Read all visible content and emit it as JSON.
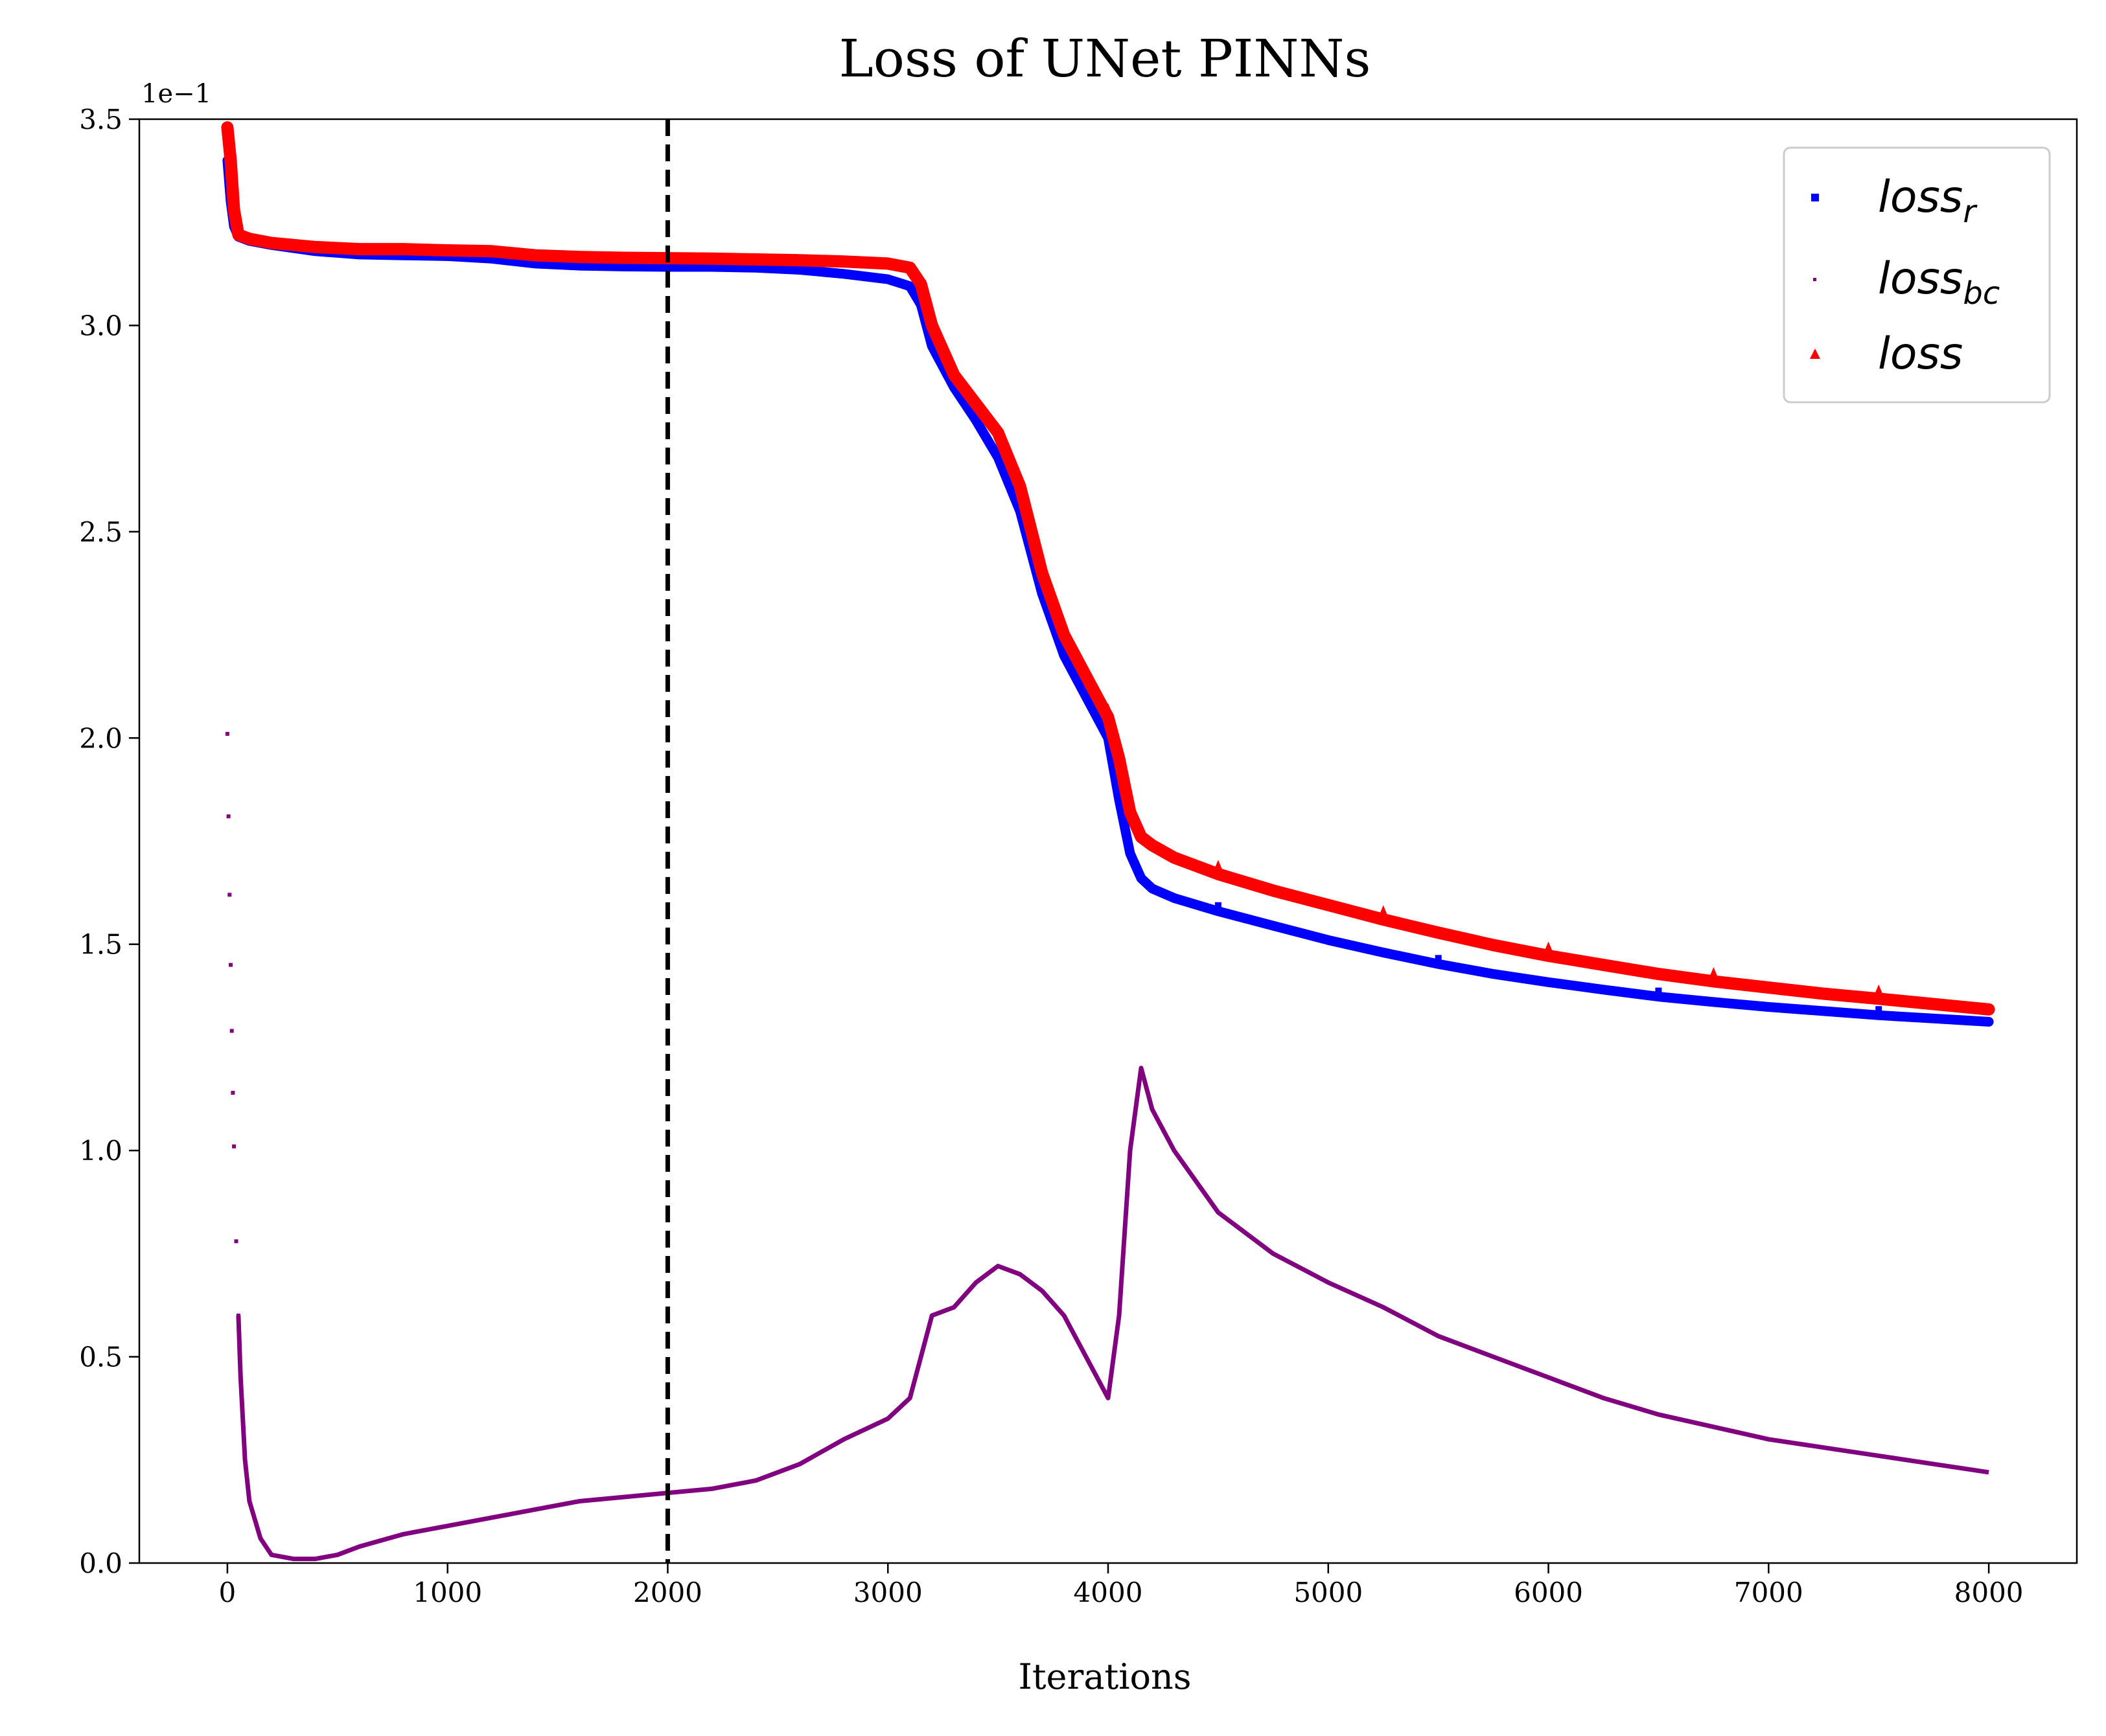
{
  "chart_data": {
    "type": "line",
    "title": "Loss of UNet PINNs",
    "xlabel": "Iterations",
    "ylabel": "",
    "y_offset_label": "1e−1",
    "xlim": [
      -400,
      8400
    ],
    "ylim": [
      0,
      3.5
    ],
    "x_ticks": [
      0,
      1000,
      2000,
      3000,
      4000,
      5000,
      6000,
      7000,
      8000
    ],
    "x_tick_labels": [
      "0",
      "1000",
      "2000",
      "3000",
      "4000",
      "5000",
      "6000",
      "7000",
      "8000"
    ],
    "y_ticks": [
      0,
      0.5,
      1.0,
      1.5,
      2.0,
      2.5,
      3.0,
      3.5
    ],
    "y_tick_labels": [
      "0.0",
      "0.5",
      "1.0",
      "1.5",
      "2.0",
      "2.5",
      "3.0",
      "3.5"
    ],
    "grid": false,
    "legend_position": "top-right",
    "vertical_line": {
      "x": 2000,
      "style": "dashed",
      "color": "#000000"
    },
    "series": [
      {
        "name": "loss",
        "name_sub": "r",
        "color": "#0000ff",
        "marker": "square",
        "x": [
          0,
          15,
          30,
          50,
          100,
          200,
          400,
          600,
          800,
          1000,
          1200,
          1400,
          1600,
          1800,
          2000,
          2200,
          2400,
          2600,
          2800,
          3000,
          3100,
          3150,
          3200,
          3300,
          3400,
          3500,
          3600,
          3700,
          3800,
          3900,
          4000,
          4050,
          4100,
          4150,
          4200,
          4300,
          4500,
          4750,
          5000,
          5250,
          5500,
          5750,
          6000,
          6250,
          6500,
          6750,
          7000,
          7250,
          7500,
          7750,
          8000
        ],
        "y": [
          3.4,
          3.3,
          3.24,
          3.215,
          3.205,
          3.195,
          3.18,
          3.172,
          3.17,
          3.168,
          3.162,
          3.15,
          3.145,
          3.143,
          3.142,
          3.142,
          3.14,
          3.135,
          3.125,
          3.112,
          3.095,
          3.05,
          2.95,
          2.85,
          2.77,
          2.68,
          2.55,
          2.35,
          2.2,
          2.1,
          2.0,
          1.85,
          1.72,
          1.66,
          1.635,
          1.612,
          1.58,
          1.545,
          1.51,
          1.48,
          1.452,
          1.428,
          1.408,
          1.39,
          1.373,
          1.36,
          1.348,
          1.338,
          1.328,
          1.32,
          1.312
        ]
      },
      {
        "name": "loss",
        "name_sub": "bc",
        "color": "#800080",
        "marker": "point",
        "x": [
          0,
          5,
          10,
          15,
          20,
          25,
          30,
          40,
          50,
          60,
          80,
          100,
          150,
          200,
          300,
          400,
          500,
          600,
          800,
          1000,
          1200,
          1400,
          1600,
          1800,
          2000,
          2200,
          2400,
          2600,
          2800,
          3000,
          3100,
          3150,
          3200,
          3300,
          3400,
          3500,
          3600,
          3700,
          3800,
          3900,
          4000,
          4050,
          4100,
          4150,
          4200,
          4300,
          4500,
          4750,
          5000,
          5250,
          5500,
          5750,
          6000,
          6250,
          6500,
          6750,
          7000,
          7250,
          7500,
          7750,
          8000
        ],
        "y": [
          2.01,
          1.81,
          1.62,
          1.45,
          1.29,
          1.14,
          1.01,
          0.78,
          0.6,
          0.45,
          0.25,
          0.15,
          0.06,
          0.02,
          0.01,
          0.01,
          0.02,
          0.04,
          0.07,
          0.09,
          0.11,
          0.13,
          0.15,
          0.16,
          0.17,
          0.18,
          0.2,
          0.24,
          0.3,
          0.35,
          0.4,
          0.5,
          0.6,
          0.62,
          0.68,
          0.72,
          0.7,
          0.66,
          0.6,
          0.5,
          0.4,
          0.6,
          1.0,
          1.2,
          1.1,
          1.0,
          0.85,
          0.75,
          0.68,
          0.62,
          0.55,
          0.5,
          0.45,
          0.4,
          0.36,
          0.33,
          0.3,
          0.28,
          0.26,
          0.24,
          0.22
        ]
      },
      {
        "name": "loss",
        "name_sub": "",
        "color": "#ff0000",
        "marker": "triangle",
        "x": [
          0,
          15,
          30,
          50,
          100,
          200,
          400,
          600,
          800,
          1000,
          1200,
          1400,
          1600,
          1800,
          2000,
          2200,
          2400,
          2600,
          2800,
          3000,
          3100,
          3150,
          3200,
          3300,
          3400,
          3500,
          3600,
          3700,
          3800,
          3900,
          4000,
          4050,
          4100,
          4150,
          4200,
          4300,
          4500,
          4750,
          5000,
          5250,
          5500,
          5750,
          6000,
          6250,
          6500,
          6750,
          7000,
          7250,
          7500,
          7750,
          8000
        ],
        "y": [
          3.48,
          3.4,
          3.28,
          3.22,
          3.21,
          3.2,
          3.19,
          3.185,
          3.185,
          3.182,
          3.18,
          3.17,
          3.166,
          3.164,
          3.163,
          3.162,
          3.16,
          3.158,
          3.155,
          3.15,
          3.14,
          3.1,
          3.0,
          2.88,
          2.81,
          2.74,
          2.61,
          2.4,
          2.25,
          2.15,
          2.05,
          1.95,
          1.82,
          1.76,
          1.74,
          1.71,
          1.67,
          1.63,
          1.595,
          1.56,
          1.528,
          1.498,
          1.472,
          1.45,
          1.428,
          1.41,
          1.395,
          1.38,
          1.368,
          1.355,
          1.342
        ]
      }
    ]
  }
}
